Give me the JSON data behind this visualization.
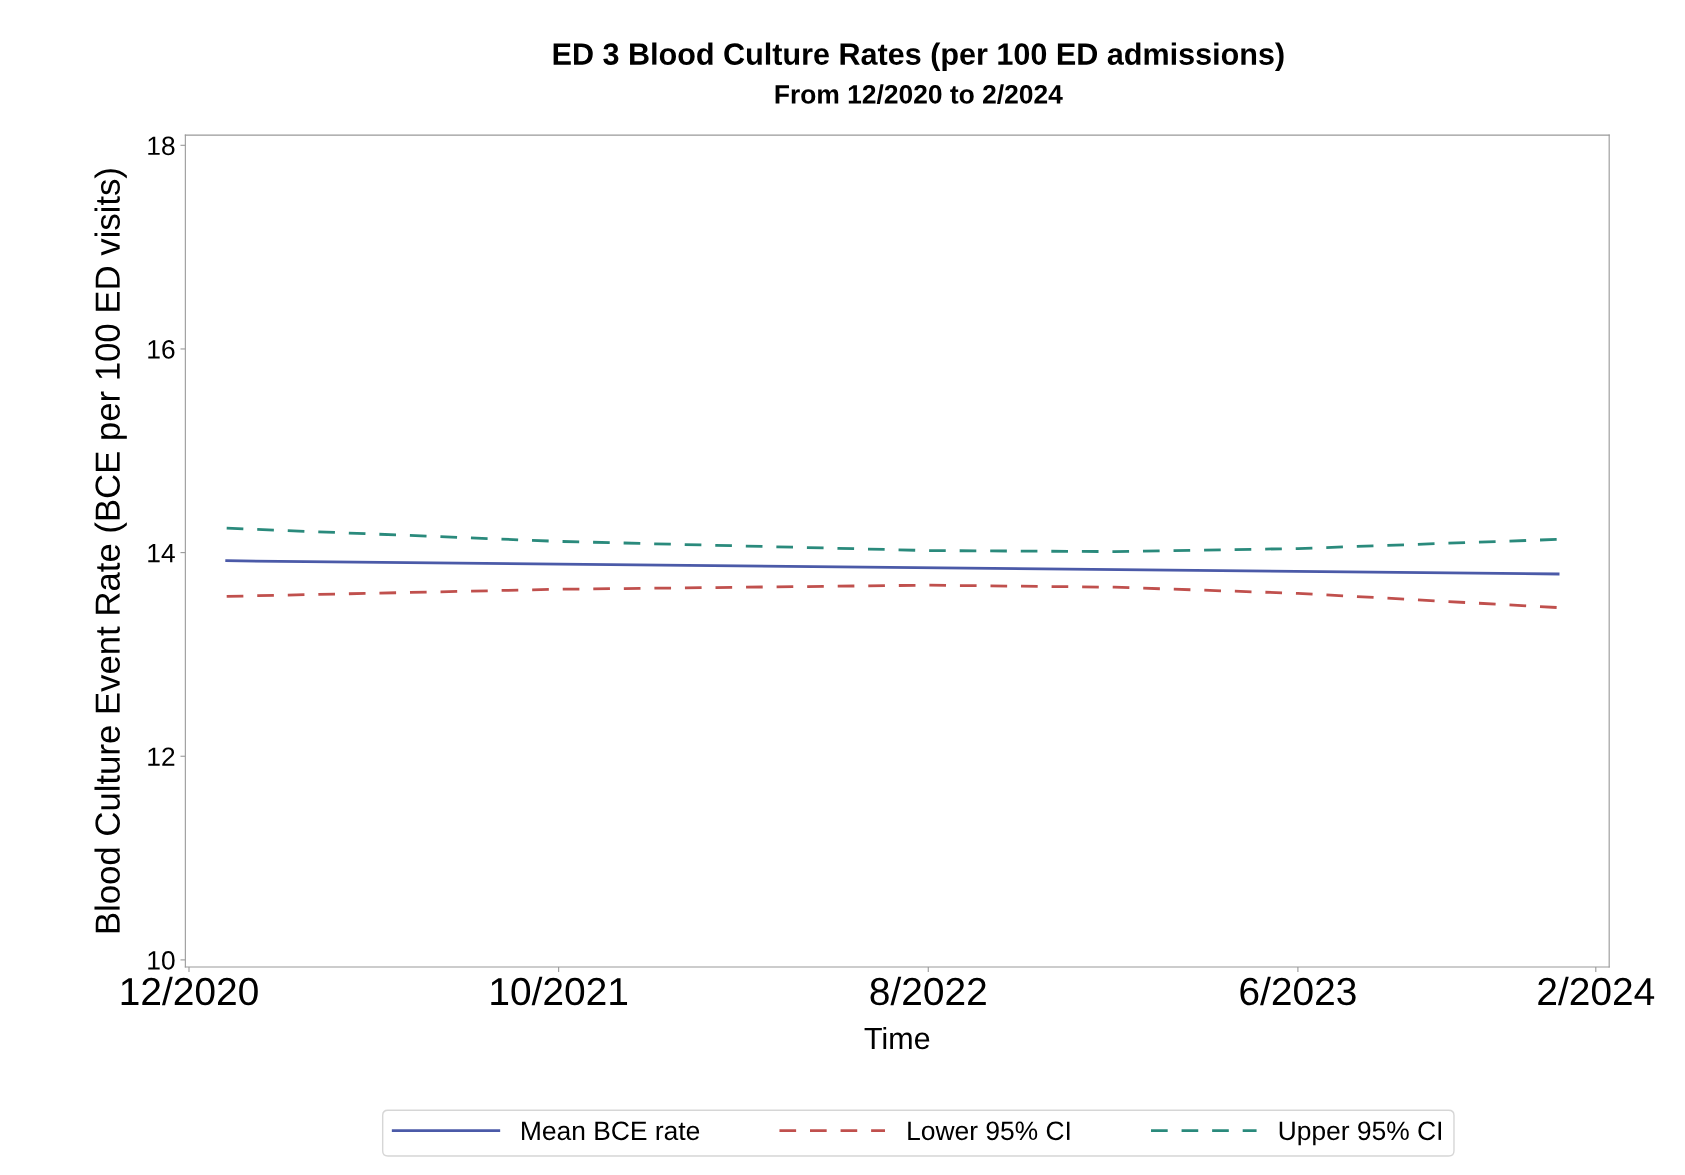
{
  "chart_data": {
    "type": "line",
    "title": "ED 3 Blood Culture Rates (per 100 ED admissions)",
    "subtitle": "From 12/2020 to 2/2024",
    "xlabel": "Time",
    "ylabel": "Blood Culture Event Rate (BCE per 100 ED visits)",
    "x": [
      "2021-01",
      "2021-10",
      "2022-08",
      "2023-01",
      "2023-06",
      "2024-01"
    ],
    "series": [
      {
        "name": "Mean BCE rate",
        "color": "#4b5aa8",
        "line_style": "solid",
        "x": [
          "2021-01",
          "2024-01"
        ],
        "values": [
          13.92,
          13.79
        ]
      },
      {
        "name": "Lower 95% CI",
        "color": "#c0504d",
        "line_style": "dashed",
        "values": [
          13.57,
          13.64,
          13.68,
          13.66,
          13.6,
          13.46
        ]
      },
      {
        "name": "Upper 95% CI",
        "color": "#2a8a7c",
        "line_style": "dashed",
        "values": [
          14.24,
          14.11,
          14.02,
          14.01,
          14.04,
          14.13
        ]
      }
    ],
    "xlim": [
      "2020-11-28",
      "2024-02-12"
    ],
    "xticks": [
      {
        "value": "2020-12",
        "label": "12/2020"
      },
      {
        "value": "2021-10",
        "label": "10/2021"
      },
      {
        "value": "2022-08",
        "label": "8/2022"
      },
      {
        "value": "2023-06",
        "label": "6/2023"
      },
      {
        "value": "2024-02",
        "label": "2/2024"
      }
    ],
    "ylim": [
      9.93,
      18.1
    ],
    "yticks": [
      10,
      12,
      14,
      16,
      18
    ],
    "grid": false,
    "legend": "bottom",
    "marker": "none"
  }
}
